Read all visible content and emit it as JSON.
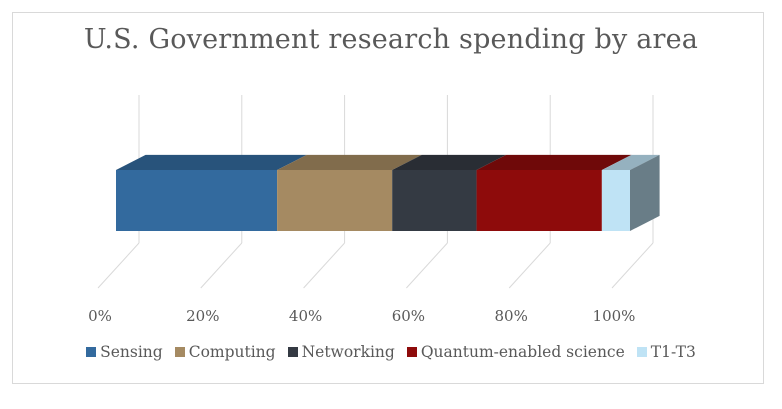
{
  "chart_data": {
    "type": "bar",
    "orientation": "horizontal",
    "stacked": "100%",
    "style": "3d",
    "title": "U.S. Government research spending by area",
    "xlim": [
      0,
      100
    ],
    "x_ticks": [
      "0%",
      "20%",
      "40%",
      "60%",
      "80%",
      "100%"
    ],
    "grid": true,
    "legend_position": "bottom",
    "series": [
      {
        "name": "Sensing",
        "value": 31.5,
        "color": "#336a9e"
      },
      {
        "name": "Computing",
        "value": 22.5,
        "color": "#a58a62"
      },
      {
        "name": "Networking",
        "value": 16.5,
        "color": "#343a43"
      },
      {
        "name": "Quantum-enabled science",
        "value": 24.5,
        "color": "#8e0b0b"
      },
      {
        "name": "T1-T3",
        "value": 5.5,
        "color": "#bfe3f5"
      }
    ]
  }
}
